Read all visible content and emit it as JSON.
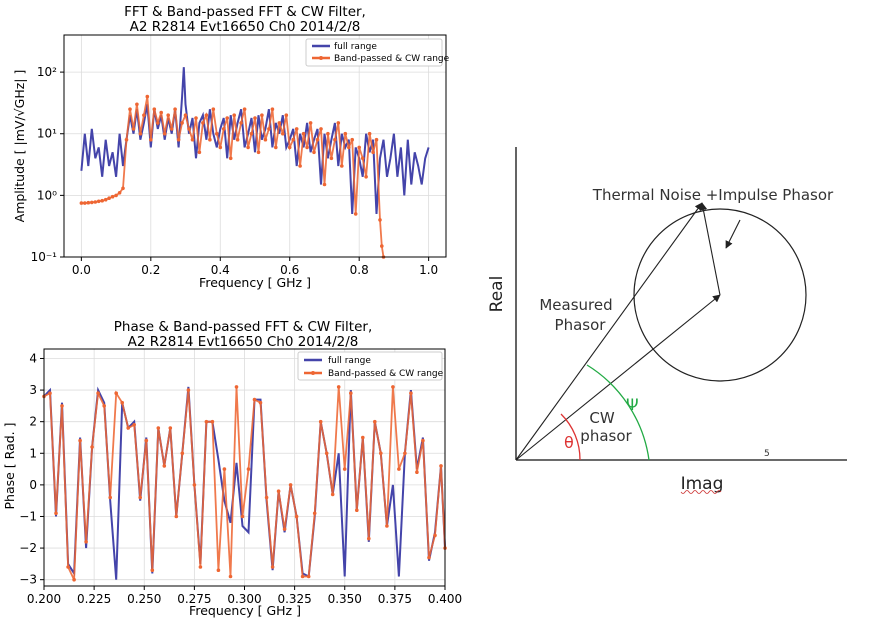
{
  "chart_data": [
    {
      "type": "line",
      "title_line1": "FFT & Band-passed FFT & CW Filter,",
      "title_line2": "A2 R2814 Evt16650 Ch0 2014/2/8",
      "xlabel": "Frequency [ GHz ]",
      "ylabel": "Amplitude [ |mV/√GHz| ]",
      "yscale": "log",
      "xlim": [
        -0.05,
        1.05
      ],
      "ylim": [
        0.1,
        400
      ],
      "xticks": [
        0.0,
        0.2,
        0.4,
        0.6,
        0.8,
        1.0
      ],
      "xtick_labels": [
        "0.0",
        "0.2",
        "0.4",
        "0.6",
        "0.8",
        "1.0"
      ],
      "yticks": [
        0.1,
        1,
        10,
        100
      ],
      "ytick_labels": [
        "10⁻¹",
        "10⁰",
        "10¹",
        "10²"
      ],
      "grid": true,
      "legend_position": "top-right",
      "series": [
        {
          "name": "full range",
          "color": "#4444aa",
          "x": [
            0.0,
            0.01,
            0.02,
            0.03,
            0.04,
            0.05,
            0.06,
            0.07,
            0.08,
            0.09,
            0.1,
            0.11,
            0.12,
            0.13,
            0.14,
            0.15,
            0.16,
            0.17,
            0.18,
            0.19,
            0.2,
            0.21,
            0.22,
            0.23,
            0.24,
            0.25,
            0.26,
            0.27,
            0.28,
            0.29,
            0.295,
            0.3,
            0.31,
            0.32,
            0.33,
            0.34,
            0.35,
            0.36,
            0.37,
            0.38,
            0.39,
            0.4,
            0.41,
            0.42,
            0.43,
            0.44,
            0.45,
            0.46,
            0.47,
            0.48,
            0.49,
            0.5,
            0.51,
            0.52,
            0.53,
            0.54,
            0.55,
            0.56,
            0.57,
            0.58,
            0.59,
            0.6,
            0.61,
            0.62,
            0.63,
            0.64,
            0.65,
            0.66,
            0.67,
            0.68,
            0.69,
            0.7,
            0.71,
            0.72,
            0.73,
            0.74,
            0.75,
            0.76,
            0.77,
            0.78,
            0.79,
            0.8,
            0.81,
            0.82,
            0.83,
            0.84,
            0.85,
            0.86,
            0.87,
            0.88,
            0.89,
            0.9,
            0.91,
            0.92,
            0.93,
            0.94,
            0.95,
            0.96,
            0.97,
            0.98,
            0.99,
            1.0
          ],
          "y": [
            2.5,
            10,
            3,
            12,
            4,
            6,
            2,
            8,
            3,
            5,
            2,
            10,
            3,
            8,
            20,
            10,
            25,
            8,
            15,
            30,
            6,
            25,
            12,
            20,
            8,
            18,
            10,
            25,
            6,
            40,
            120,
            30,
            10,
            18,
            4,
            15,
            20,
            8,
            25,
            10,
            6,
            12,
            18,
            4,
            20,
            8,
            15,
            25,
            6,
            10,
            18,
            5,
            20,
            8,
            12,
            25,
            6,
            15,
            10,
            20,
            6,
            8,
            12,
            3,
            10,
            6,
            15,
            5,
            8,
            12,
            1.5,
            10,
            4,
            8,
            15,
            3,
            10,
            6,
            8,
            0.5,
            6,
            4,
            2,
            10,
            5,
            8,
            0.5,
            4,
            8,
            2,
            4,
            10,
            2,
            6,
            1,
            8,
            1.5,
            5,
            3,
            1.5,
            4,
            6
          ]
        },
        {
          "name": "Band-passed & CW range",
          "color": "#ee6633",
          "x": [
            0.0,
            0.01,
            0.02,
            0.03,
            0.04,
            0.05,
            0.06,
            0.07,
            0.08,
            0.09,
            0.1,
            0.11,
            0.12,
            0.13,
            0.14,
            0.15,
            0.16,
            0.17,
            0.18,
            0.19,
            0.2,
            0.21,
            0.22,
            0.23,
            0.24,
            0.25,
            0.26,
            0.27,
            0.28,
            0.29,
            0.3,
            0.31,
            0.32,
            0.33,
            0.34,
            0.35,
            0.36,
            0.37,
            0.38,
            0.39,
            0.4,
            0.41,
            0.42,
            0.43,
            0.44,
            0.45,
            0.46,
            0.47,
            0.48,
            0.49,
            0.5,
            0.51,
            0.52,
            0.53,
            0.54,
            0.55,
            0.56,
            0.57,
            0.58,
            0.59,
            0.6,
            0.61,
            0.62,
            0.63,
            0.64,
            0.65,
            0.66,
            0.67,
            0.68,
            0.69,
            0.7,
            0.71,
            0.72,
            0.73,
            0.74,
            0.75,
            0.76,
            0.77,
            0.78,
            0.79,
            0.8,
            0.81,
            0.82,
            0.83,
            0.84,
            0.85,
            0.86,
            0.865,
            0.87
          ],
          "y": [
            0.75,
            0.75,
            0.76,
            0.77,
            0.78,
            0.8,
            0.82,
            0.85,
            0.9,
            0.95,
            1.0,
            1.1,
            1.3,
            8,
            25,
            12,
            30,
            10,
            20,
            40,
            8,
            25,
            15,
            22,
            10,
            20,
            12,
            25,
            8,
            15,
            20,
            12,
            8,
            18,
            5,
            15,
            20,
            8,
            25,
            10,
            6,
            12,
            18,
            4,
            20,
            8,
            15,
            25,
            6,
            10,
            18,
            5,
            20,
            8,
            12,
            25,
            6,
            15,
            10,
            20,
            6,
            8,
            12,
            3,
            10,
            6,
            15,
            5,
            8,
            12,
            1.5,
            10,
            4,
            8,
            15,
            3,
            10,
            6,
            8,
            0.5,
            6,
            4,
            2,
            10,
            5,
            8,
            0.4,
            0.15,
            0.1
          ]
        }
      ]
    },
    {
      "type": "line",
      "title_line1": "Phase & Band-passed FFT & CW Filter,",
      "title_line2": "A2 R2814 Evt16650 Ch0 2014/2/8",
      "xlabel": "Frequency [ GHz ]",
      "ylabel": "Phase [ Rad. ]",
      "xlim": [
        0.2,
        0.4
      ],
      "ylim": [
        -3.2,
        4.3
      ],
      "xticks": [
        0.2,
        0.225,
        0.25,
        0.275,
        0.3,
        0.325,
        0.35,
        0.375,
        0.4
      ],
      "xtick_labels": [
        "0.200",
        "0.225",
        "0.250",
        "0.275",
        "0.300",
        "0.325",
        "0.350",
        "0.375",
        "0.400"
      ],
      "yticks": [
        -3,
        -2,
        -1,
        0,
        1,
        2,
        3,
        4
      ],
      "ytick_labels": [
        "−3",
        "−2",
        "−1",
        "0",
        "1",
        "2",
        "3",
        "4"
      ],
      "grid": true,
      "legend_position": "top-right",
      "series": [
        {
          "name": "full range",
          "color": "#4444aa",
          "x": [
            0.2,
            0.203,
            0.206,
            0.209,
            0.212,
            0.215,
            0.218,
            0.221,
            0.224,
            0.227,
            0.23,
            0.233,
            0.236,
            0.239,
            0.242,
            0.245,
            0.248,
            0.251,
            0.254,
            0.257,
            0.26,
            0.263,
            0.266,
            0.269,
            0.272,
            0.275,
            0.278,
            0.281,
            0.284,
            0.287,
            0.29,
            0.293,
            0.296,
            0.299,
            0.302,
            0.305,
            0.308,
            0.311,
            0.314,
            0.317,
            0.32,
            0.323,
            0.326,
            0.329,
            0.332,
            0.335,
            0.338,
            0.341,
            0.344,
            0.347,
            0.35,
            0.353,
            0.356,
            0.359,
            0.362,
            0.365,
            0.368,
            0.371,
            0.374,
            0.377,
            0.38,
            0.383,
            0.386,
            0.389,
            0.392,
            0.395,
            0.398,
            0.4
          ],
          "y": [
            2.8,
            3.0,
            -1.0,
            2.6,
            -2.5,
            -2.8,
            1.5,
            -2.0,
            1.2,
            3.0,
            2.6,
            -0.5,
            -3.0,
            2.6,
            1.8,
            2.0,
            -0.5,
            1.5,
            -2.8,
            1.8,
            0.6,
            1.8,
            -1.0,
            1.0,
            3.1,
            0.0,
            -2.5,
            2.0,
            2.0,
            0.8,
            -0.5,
            -1.2,
            0.7,
            -1.3,
            -1.5,
            2.7,
            2.7,
            -0.5,
            -2.7,
            -0.2,
            -1.5,
            0.0,
            -1.0,
            -2.8,
            -2.9,
            -1.0,
            2.0,
            1.0,
            -0.3,
            1.0,
            -2.9,
            3.0,
            -0.8,
            1.5,
            -1.8,
            2.0,
            1.0,
            -1.3,
            0.0,
            -2.9,
            1.0,
            3.0,
            0.5,
            1.5,
            -2.4,
            -1.5,
            0.6,
            -2.0
          ]
        },
        {
          "name": "Band-passed & CW range",
          "color": "#ee6633",
          "x": [
            0.2,
            0.203,
            0.206,
            0.209,
            0.212,
            0.215,
            0.218,
            0.221,
            0.224,
            0.227,
            0.23,
            0.233,
            0.236,
            0.239,
            0.242,
            0.245,
            0.248,
            0.251,
            0.254,
            0.257,
            0.26,
            0.263,
            0.266,
            0.269,
            0.272,
            0.275,
            0.278,
            0.281,
            0.284,
            0.287,
            0.29,
            0.293,
            0.296,
            0.299,
            0.302,
            0.305,
            0.308,
            0.311,
            0.314,
            0.317,
            0.32,
            0.323,
            0.326,
            0.329,
            0.332,
            0.335,
            0.338,
            0.341,
            0.344,
            0.347,
            0.35,
            0.353,
            0.356,
            0.359,
            0.362,
            0.365,
            0.368,
            0.371,
            0.374,
            0.377,
            0.38,
            0.383,
            0.386,
            0.389,
            0.392,
            0.395,
            0.398,
            0.4
          ],
          "y": [
            2.8,
            2.9,
            -0.9,
            2.5,
            -2.6,
            -3.0,
            1.4,
            -1.8,
            1.2,
            2.9,
            2.5,
            -0.4,
            2.9,
            2.6,
            1.8,
            1.9,
            -0.4,
            1.4,
            -2.7,
            1.8,
            0.6,
            1.8,
            -1.0,
            1.0,
            3.0,
            0.0,
            -2.6,
            2.0,
            2.0,
            -2.7,
            0.5,
            -2.9,
            3.1,
            -1.0,
            0.5,
            2.7,
            2.6,
            -0.4,
            -2.6,
            -0.2,
            -1.4,
            0.0,
            -1.0,
            -2.9,
            -2.9,
            -0.9,
            2.0,
            1.0,
            -0.3,
            3.1,
            0.5,
            2.9,
            -0.8,
            1.5,
            -1.7,
            2.0,
            1.0,
            -1.3,
            3.1,
            0.5,
            1.0,
            2.9,
            0.4,
            1.4,
            -2.3,
            -1.6,
            0.6,
            -2.0
          ]
        }
      ]
    }
  ],
  "diagram": {
    "real_axis_label": "Real",
    "imag_axis_label": "Imag",
    "tick_5_label": "5",
    "thermal_label": "Thermal Noise +Impulse Phasor",
    "measured_line1": "Measured",
    "measured_line2": "Phasor",
    "cw_line1": "CW",
    "cw_line2": "phasor",
    "psi_symbol": "Ψ",
    "theta_symbol": "θ",
    "psi_color": "#22aa44",
    "theta_color": "#dd3333"
  }
}
